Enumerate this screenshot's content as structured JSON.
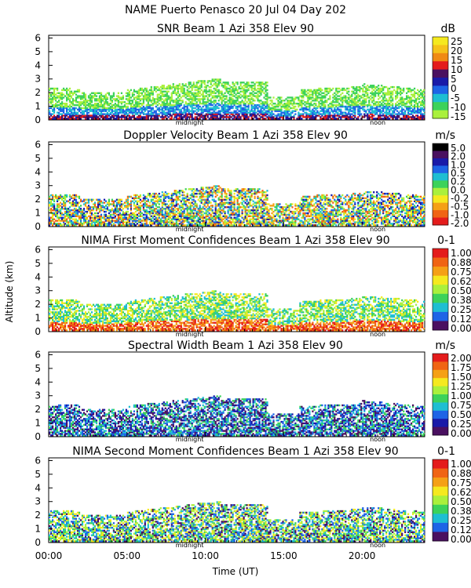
{
  "title": "NAME Puerto Penasco  20 Jul 04 Day 202",
  "ylabel": "Altitude (km)",
  "xlabel": "Time (UT)",
  "x_ticks": [
    "00:00",
    "05:00",
    "10:00",
    "15:00",
    "20:00"
  ],
  "y_ticks": [
    "0",
    "1",
    "2",
    "3",
    "4",
    "5",
    "6"
  ],
  "day_markers": [
    "midnight",
    "noon"
  ],
  "chart_data": [
    {
      "type": "heatmap",
      "title": "SNR Beam 1 Azi 358 Elev 90",
      "colorbar_unit": "dB",
      "colorbar_ticks": [
        "25",
        "20",
        "15",
        "10",
        "5",
        "0",
        "-5",
        "-10",
        "-15"
      ],
      "colorbar_colors": [
        "#f5e91f",
        "#f5c21a",
        "#f08a14",
        "#e41c1c",
        "#4a1060",
        "#1a1aa8",
        "#1e64e6",
        "#1ebed2",
        "#3cd25a",
        "#aaf03c"
      ],
      "x_range_hours": [
        0,
        24
      ],
      "y_range_km": [
        0,
        6.2
      ]
    },
    {
      "type": "heatmap",
      "title": "Doppler Velocity Beam 1 Azi 358 Elev 90",
      "colorbar_unit": "m/s",
      "colorbar_ticks": [
        "5.0",
        "2.0",
        "1.0",
        "0.5",
        "0.2",
        "0.0",
        "-0.2",
        "-0.5",
        "-1.0",
        "-2.0"
      ],
      "colorbar_colors": [
        "#000000",
        "#4a1060",
        "#1a1aa8",
        "#1e64e6",
        "#1ebed2",
        "#3cd25a",
        "#aaf03c",
        "#f5e91f",
        "#f5a016",
        "#f06414",
        "#e41c1c"
      ],
      "x_range_hours": [
        0,
        24
      ],
      "y_range_km": [
        0,
        6.2
      ]
    },
    {
      "type": "heatmap",
      "title": "NIMA First Moment Confidences Beam 1 Azi 358 Elev 90",
      "colorbar_unit": "0-1",
      "colorbar_ticks": [
        "1.00",
        "0.88",
        "0.75",
        "0.62",
        "0.50",
        "0.38",
        "0.25",
        "0.12",
        "0.00"
      ],
      "colorbar_colors": [
        "#e41c1c",
        "#f06414",
        "#f5a016",
        "#f5e91f",
        "#aaf03c",
        "#3cd25a",
        "#1ebed2",
        "#1e64e6",
        "#4a1060"
      ],
      "x_range_hours": [
        0,
        24
      ],
      "y_range_km": [
        0,
        6.2
      ]
    },
    {
      "type": "heatmap",
      "title": "Spectral Width Beam 1 Azi 358 Elev 90",
      "colorbar_unit": "m/s",
      "colorbar_ticks": [
        "2.00",
        "1.75",
        "1.50",
        "1.25",
        "1.00",
        "0.75",
        "0.50",
        "0.25",
        "0.00"
      ],
      "colorbar_colors": [
        "#e41c1c",
        "#f06414",
        "#f5a016",
        "#f5e91f",
        "#aaf03c",
        "#3cd25a",
        "#1ebed2",
        "#1e64e6",
        "#1a1aa8",
        "#4a1060"
      ],
      "x_range_hours": [
        0,
        24
      ],
      "y_range_km": [
        0,
        6.2
      ]
    },
    {
      "type": "heatmap",
      "title": "NIMA Second Moment Confidences Beam 1 Azi 358 Elev 90",
      "colorbar_unit": "0-1",
      "colorbar_ticks": [
        "1.00",
        "0.88",
        "0.75",
        "0.62",
        "0.50",
        "0.38",
        "0.25",
        "0.12",
        "0.00"
      ],
      "colorbar_colors": [
        "#e41c1c",
        "#f06414",
        "#f5a016",
        "#f5e91f",
        "#aaf03c",
        "#3cd25a",
        "#1ebed2",
        "#1e64e6",
        "#4a1060"
      ],
      "x_range_hours": [
        0,
        24
      ],
      "y_range_km": [
        0,
        6.2
      ]
    }
  ]
}
